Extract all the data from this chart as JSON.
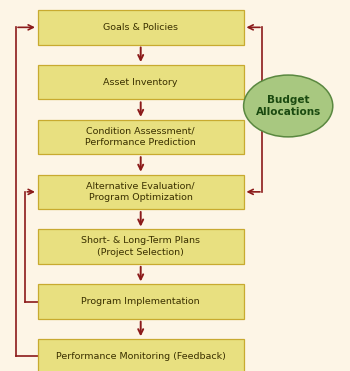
{
  "background_color": "#fdf5e6",
  "box_fill_color": "#e8e080",
  "box_edge_color": "#c8aa30",
  "box_text_color": "#3a3000",
  "arrow_color": "#8b1a1a",
  "ellipse_fill_color": "#a8c880",
  "ellipse_edge_color": "#5a8840",
  "ellipse_text_color": "#1a4a10",
  "boxes": [
    {
      "label": "Goals & Policies"
    },
    {
      "label": "Asset Inventory"
    },
    {
      "label": "Condition Assessment/\nPerformance Prediction"
    },
    {
      "label": "Alternative Evaluation/\nProgram Optimization"
    },
    {
      "label": "Short- & Long-Term Plans\n(Project Selection)"
    },
    {
      "label": "Program Implementation"
    },
    {
      "label": "Performance Monitoring (Feedback)"
    }
  ],
  "figsize": [
    3.5,
    3.71
  ],
  "dpi": 100
}
